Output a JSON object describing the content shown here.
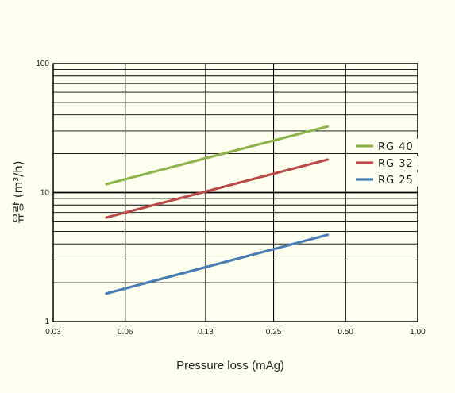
{
  "chart_data": {
    "type": "line",
    "xlabel": "Pressure loss (mAg)",
    "ylabel": "유량 (m³/h)",
    "x_scale": "log",
    "y_scale": "log",
    "xlim": [
      0.03,
      1.0
    ],
    "ylim": [
      1,
      100
    ],
    "x_ticks": [
      "0.03",
      "0.06",
      "0.13",
      "0.25",
      "0.50",
      "1.00"
    ],
    "x_tick_values": [
      0.03,
      0.06,
      0.13,
      0.25,
      0.5,
      1.0
    ],
    "y_ticks": [
      "1",
      "10",
      "100"
    ],
    "y_tick_values": [
      1,
      10,
      100
    ],
    "grid": true,
    "legend_position": "right",
    "series": [
      {
        "name": "RG 40",
        "color": "#8cb44a",
        "x": [
          0.05,
          0.42
        ],
        "y": [
          11.6,
          32.5
        ]
      },
      {
        "name": "RG 32",
        "color": "#b94a48",
        "x": [
          0.05,
          0.42
        ],
        "y": [
          6.4,
          18.0
        ]
      },
      {
        "name": "RG 25",
        "color": "#4a7db6",
        "x": [
          0.05,
          0.42
        ],
        "y": [
          1.65,
          4.7
        ]
      }
    ]
  }
}
